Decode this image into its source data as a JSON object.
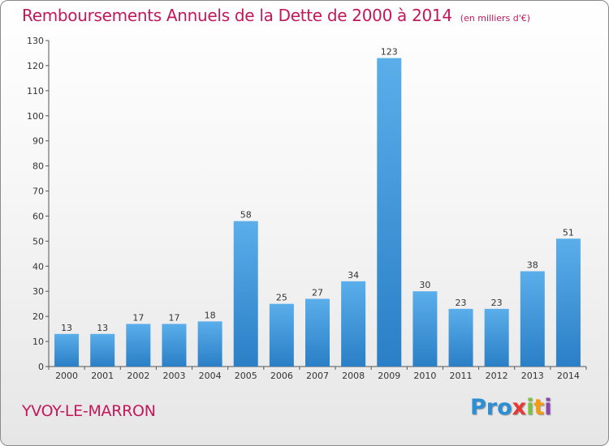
{
  "chart_data": {
    "type": "bar",
    "title": "Remboursements Annuels de la Dette de 2000 à 2014",
    "subtitle": "(en milliers d'€)",
    "categories": [
      "2000",
      "2001",
      "2002",
      "2003",
      "2004",
      "2005",
      "2006",
      "2007",
      "2008",
      "2009",
      "2010",
      "2011",
      "2012",
      "2013",
      "2014"
    ],
    "values": [
      13,
      13,
      17,
      17,
      18,
      58,
      25,
      27,
      34,
      123,
      30,
      23,
      23,
      38,
      51
    ],
    "ylim": [
      0,
      130
    ],
    "yticks": [
      0,
      10,
      20,
      30,
      40,
      50,
      60,
      70,
      80,
      90,
      100,
      110,
      120,
      130
    ],
    "grid": false,
    "bar_color": "#3d97de",
    "title_color": "#c2185b"
  },
  "footer": {
    "town": "YVOY-LE-MARRON",
    "logo": [
      "Pro",
      "x",
      "i",
      "t",
      "i"
    ]
  }
}
